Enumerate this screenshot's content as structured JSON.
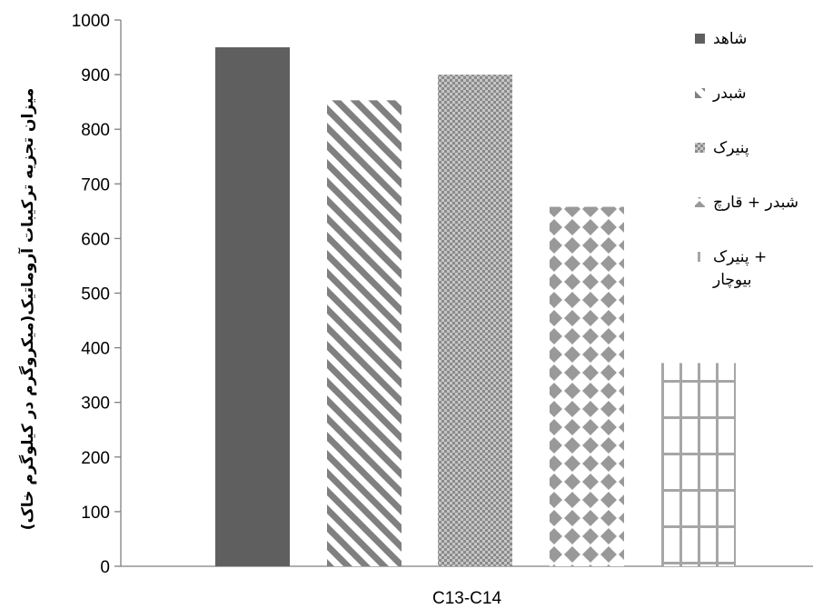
{
  "chart_data": {
    "type": "bar",
    "categories": [
      "C13-C14"
    ],
    "series": [
      {
        "name": "شاهد",
        "values": [
          950
        ],
        "pattern": "solid",
        "color": "#5f5f5f"
      },
      {
        "name": "شبدر",
        "values": [
          853
        ],
        "pattern": "diagonal",
        "color": "#808080"
      },
      {
        "name": "پنیرک",
        "values": [
          900
        ],
        "pattern": "checker",
        "color": "#9a9a9a"
      },
      {
        "name": "شبدر + قارچ",
        "values": [
          658
        ],
        "pattern": "diamond",
        "color": "#999999"
      },
      {
        "name": "پنیرک + بیوچار",
        "values": [
          372
        ],
        "pattern": "grid",
        "color": "#a6a6a6"
      }
    ],
    "ylim": [
      0,
      1000
    ],
    "yticks": [
      "0",
      "100",
      "200",
      "300",
      "400",
      "500",
      "600",
      "700",
      "800",
      "900",
      "1000"
    ],
    "ylabel": "میزان تجزیه ترکیبات آروماتیک(میکروگرم در کیلوگرم خاک)",
    "xlabel": "",
    "title": "",
    "grid": false,
    "legend_position": "right"
  }
}
